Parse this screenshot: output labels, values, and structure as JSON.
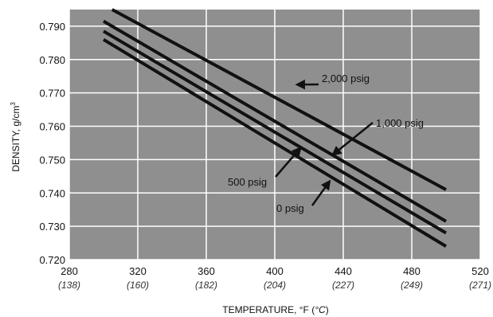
{
  "chart_data": {
    "type": "line",
    "title": "",
    "xlabel": "TEMPERATURE, °F (°C)",
    "xlabel_parts": {
      "main": "TEMPERATURE, °F (",
      "unit_c": "°C",
      "close": ")"
    },
    "ylabel": "DENSITY, g/cm³",
    "ylabel_parts": {
      "main": "DENSITY, g/cm",
      "sup": "3"
    },
    "xlim": [
      280,
      520
    ],
    "ylim": [
      0.72,
      0.795
    ],
    "x_ticks": [
      280,
      320,
      360,
      400,
      440,
      480,
      520
    ],
    "x_tick_labels": [
      "280",
      "320",
      "360",
      "400",
      "440",
      "480",
      "520"
    ],
    "x_tick_labels_c": [
      "(138)",
      "(160)",
      "(182)",
      "(204)",
      "(227)",
      "(249)",
      "(271)"
    ],
    "y_ticks": [
      0.72,
      0.73,
      0.74,
      0.75,
      0.76,
      0.77,
      0.78,
      0.79
    ],
    "y_tick_labels": [
      "0.720",
      "0.730",
      "0.740",
      "0.750",
      "0.760",
      "0.770",
      "0.780",
      "0.790"
    ],
    "grid": true,
    "background_color": "#8f8f8f",
    "grid_color": "#ffffff",
    "line_color": "#111111",
    "series": [
      {
        "name": "2,000 psig",
        "x": [
          305,
          500
        ],
        "y": [
          0.795,
          0.741
        ]
      },
      {
        "name": "1,000 psig",
        "x": [
          300,
          500
        ],
        "y": [
          0.7915,
          0.7315
        ]
      },
      {
        "name": "500 psig",
        "x": [
          300,
          500
        ],
        "y": [
          0.7885,
          0.728
        ]
      },
      {
        "name": "0 psig",
        "x": [
          300,
          500
        ],
        "y": [
          0.786,
          0.724
        ]
      }
    ],
    "annotations": [
      {
        "text": "2,000 psig",
        "arrow_to": [
          413,
          0.7725
        ]
      },
      {
        "text": "1,000 psig",
        "arrow_to": [
          434,
          0.7515
        ]
      },
      {
        "text": "500 psig",
        "arrow_to": [
          415,
          0.7535
        ]
      },
      {
        "text": "0 psig",
        "arrow_to": [
          432,
          0.7435
        ]
      }
    ]
  }
}
